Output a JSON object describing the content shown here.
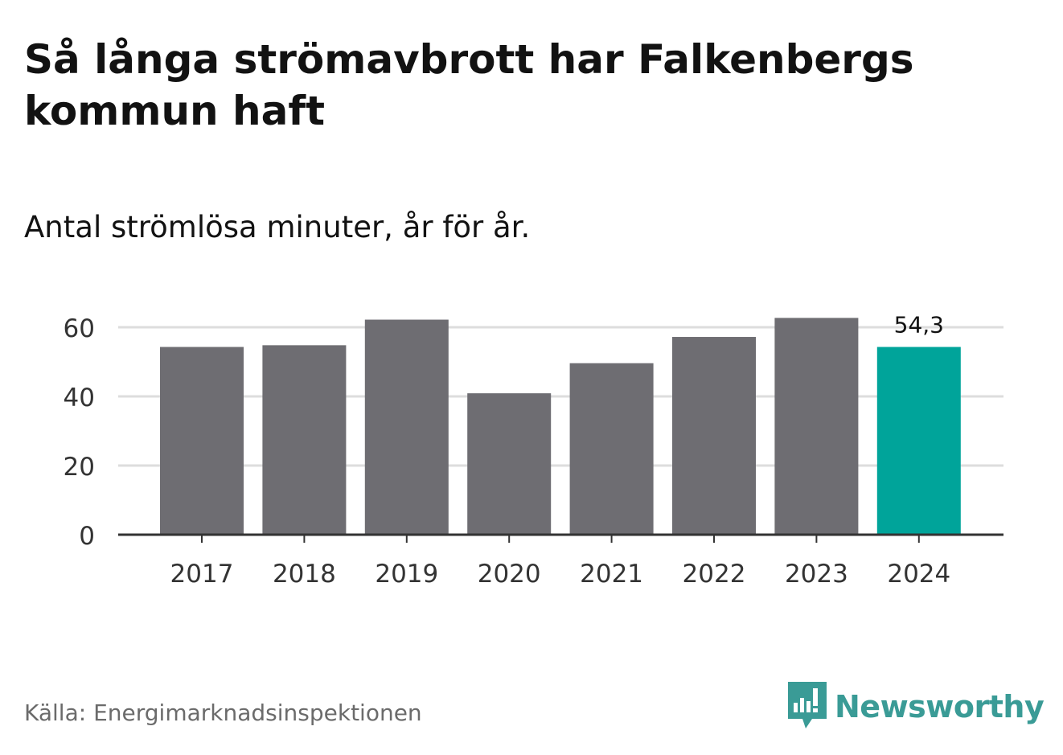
{
  "title": "Så långa strömavbrott har Falkenbergs kommun haft",
  "subtitle": "Antal strömlösa minuter, år för år.",
  "source": "Källa: Energimarknadsinspektionen",
  "brand": {
    "name": "Newsworthy",
    "icon": "newsworthy-logo-icon",
    "color": "#3a9b96"
  },
  "colors": {
    "bar": "#6e6d72",
    "highlight": "#00a49a",
    "grid": "#dddddd",
    "axis": "#333333",
    "tick_text": "#333333"
  },
  "chart_data": {
    "type": "bar",
    "categories": [
      "2017",
      "2018",
      "2019",
      "2020",
      "2021",
      "2022",
      "2023",
      "2024"
    ],
    "values": [
      54.3,
      54.8,
      62.2,
      40.9,
      49.6,
      57.2,
      62.7,
      54.3
    ],
    "highlight_index": 7,
    "data_labels": [
      {
        "index": 7,
        "text": "54,3"
      }
    ],
    "yticks": [
      "0",
      "20",
      "40",
      "60"
    ],
    "ylim": [
      0,
      66
    ],
    "grid": true,
    "xlabel": "",
    "ylabel": ""
  }
}
